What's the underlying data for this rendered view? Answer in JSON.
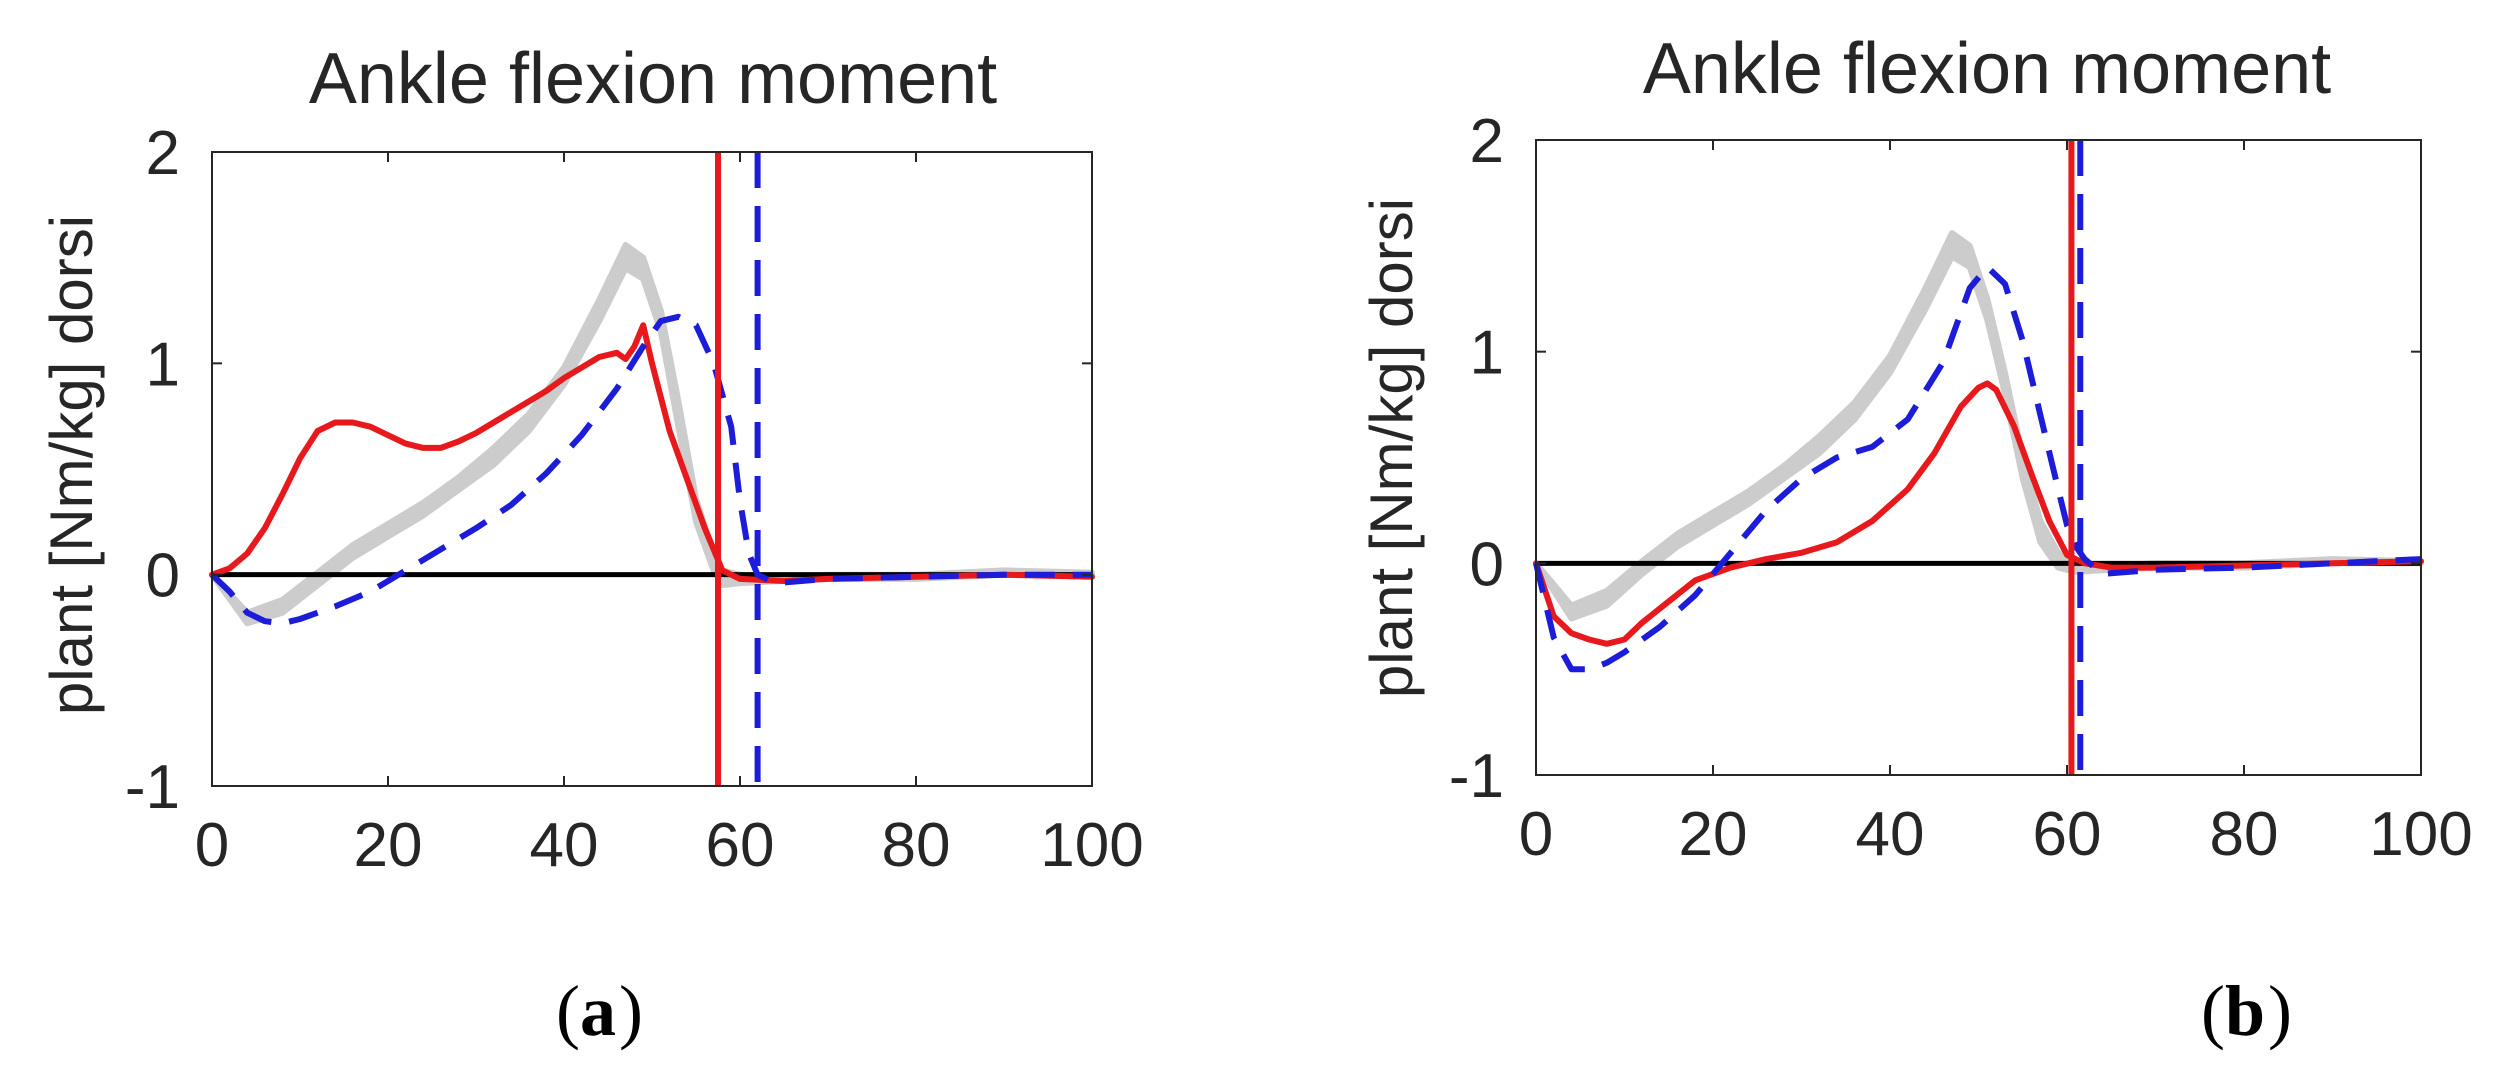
{
  "chart_data": [
    {
      "panel": "a",
      "type": "line",
      "title": "Ankle flexion moment",
      "ylabel": "plant   [Nm/kg]   dorsi",
      "xlabel": "",
      "xlim": [
        0,
        100
      ],
      "ylim": [
        -1,
        2
      ],
      "xticks": [
        "0",
        "20",
        "40",
        "60",
        "80",
        "100"
      ],
      "yticks": [
        "-1",
        "0",
        "1",
        "2"
      ],
      "grid": false,
      "legend": "none",
      "caption": "a",
      "band": {
        "color": "#cccccc",
        "x": [
          0,
          4,
          8,
          12,
          16,
          20,
          24,
          28,
          32,
          36,
          40,
          44,
          47,
          49,
          51,
          53,
          55,
          57,
          58,
          60,
          65,
          70,
          80,
          90,
          100
        ],
        "lower": [
          0,
          -0.23,
          -0.18,
          -0.05,
          0.08,
          0.18,
          0.28,
          0.4,
          0.52,
          0.68,
          0.9,
          1.2,
          1.45,
          1.4,
          1.15,
          0.7,
          0.25,
          0.02,
          -0.05,
          -0.04,
          -0.03,
          -0.02,
          -0.02,
          0.0,
          0.0
        ],
        "upper": [
          0,
          -0.18,
          -0.12,
          0.01,
          0.14,
          0.24,
          0.34,
          0.46,
          0.6,
          0.76,
          0.98,
          1.3,
          1.56,
          1.5,
          1.25,
          0.82,
          0.36,
          0.1,
          0.02,
          0.0,
          -0.01,
          0.0,
          0.0,
          0.02,
          0.01
        ]
      },
      "series": [
        {
          "color": "#e8191c",
          "style": "solid",
          "x": [
            0,
            2,
            4,
            6,
            8,
            10,
            12,
            14,
            16,
            18,
            20,
            22,
            24,
            26,
            28,
            30,
            32,
            34,
            36,
            38,
            40,
            42,
            44,
            46,
            47,
            48,
            49,
            50,
            52,
            54,
            56,
            58,
            60,
            65,
            70,
            80,
            90,
            100
          ],
          "y": [
            0,
            0.03,
            0.1,
            0.22,
            0.38,
            0.55,
            0.68,
            0.72,
            0.72,
            0.7,
            0.66,
            0.62,
            0.6,
            0.6,
            0.63,
            0.67,
            0.72,
            0.77,
            0.82,
            0.87,
            0.93,
            0.98,
            1.03,
            1.05,
            1.02,
            1.08,
            1.18,
            1.0,
            0.68,
            0.45,
            0.22,
            0.02,
            -0.02,
            -0.03,
            -0.02,
            -0.01,
            0.0,
            -0.01
          ]
        },
        {
          "color": "#1c1cd9",
          "style": "dashed",
          "x": [
            0,
            2,
            4,
            6,
            8,
            10,
            14,
            18,
            22,
            26,
            30,
            34,
            38,
            42,
            46,
            49,
            51,
            53,
            55,
            57,
            59,
            60,
            61,
            62,
            64,
            70,
            80,
            90,
            100
          ],
          "y": [
            0,
            -0.08,
            -0.18,
            -0.22,
            -0.23,
            -0.21,
            -0.15,
            -0.08,
            0.02,
            0.12,
            0.22,
            0.33,
            0.48,
            0.66,
            0.88,
            1.08,
            1.2,
            1.22,
            1.18,
            1.0,
            0.7,
            0.35,
            0.1,
            0.0,
            -0.04,
            -0.02,
            -0.01,
            0.0,
            0.0
          ]
        }
      ],
      "vlines": [
        {
          "x": 57.5,
          "color": "#e8191c",
          "style": "solid"
        },
        {
          "x": 62,
          "color": "#1c1cd9",
          "style": "dashed"
        }
      ],
      "hline": {
        "y": 0,
        "color": "#000000"
      }
    },
    {
      "panel": "b",
      "type": "line",
      "title": "Ankle flexion moment",
      "ylabel": "plant   [Nm/kg]   dorsi",
      "xlabel": "",
      "xlim": [
        0,
        100
      ],
      "ylim": [
        -1,
        2
      ],
      "xticks": [
        "0",
        "20",
        "40",
        "60",
        "80",
        "100"
      ],
      "yticks": [
        "-1",
        "0",
        "1",
        "2"
      ],
      "grid": false,
      "legend": "none",
      "caption": "b",
      "band": {
        "color": "#cccccc",
        "x": [
          0,
          4,
          8,
          12,
          16,
          20,
          24,
          28,
          32,
          36,
          40,
          44,
          47,
          49,
          51,
          53,
          55,
          57,
          59,
          61,
          65,
          70,
          80,
          90,
          100
        ],
        "lower": [
          0,
          -0.26,
          -0.2,
          -0.05,
          0.08,
          0.18,
          0.28,
          0.4,
          0.52,
          0.68,
          0.9,
          1.2,
          1.45,
          1.4,
          1.15,
          0.8,
          0.4,
          0.1,
          -0.02,
          -0.04,
          -0.03,
          -0.02,
          -0.02,
          0.0,
          0.0
        ],
        "upper": [
          0,
          -0.2,
          -0.13,
          0.01,
          0.14,
          0.24,
          0.34,
          0.46,
          0.6,
          0.76,
          0.98,
          1.3,
          1.56,
          1.5,
          1.25,
          0.9,
          0.5,
          0.2,
          0.05,
          0.0,
          -0.01,
          0.0,
          0.0,
          0.02,
          0.01
        ]
      },
      "series": [
        {
          "color": "#e8191c",
          "style": "solid",
          "x": [
            0,
            2,
            4,
            6,
            8,
            10,
            12,
            15,
            18,
            22,
            26,
            30,
            34,
            38,
            42,
            45,
            48,
            50,
            51,
            52,
            54,
            56,
            58,
            60,
            62,
            65,
            70,
            80,
            90,
            100
          ],
          "y": [
            0,
            -0.25,
            -0.33,
            -0.36,
            -0.38,
            -0.36,
            -0.28,
            -0.18,
            -0.08,
            -0.02,
            0.02,
            0.05,
            0.1,
            0.2,
            0.35,
            0.52,
            0.74,
            0.83,
            0.85,
            0.82,
            0.65,
            0.42,
            0.2,
            0.04,
            0.0,
            -0.02,
            -0.02,
            -0.01,
            0.0,
            0.01
          ]
        },
        {
          "color": "#1c1cd9",
          "style": "dashed",
          "x": [
            0,
            2,
            4,
            6,
            8,
            10,
            14,
            18,
            22,
            26,
            30,
            34,
            38,
            42,
            46,
            49,
            51,
            53,
            55,
            57,
            59,
            60,
            61,
            62,
            64,
            70,
            80,
            90,
            100
          ],
          "y": [
            0,
            -0.35,
            -0.5,
            -0.5,
            -0.47,
            -0.42,
            -0.3,
            -0.15,
            0.05,
            0.25,
            0.4,
            0.5,
            0.55,
            0.68,
            0.95,
            1.3,
            1.4,
            1.32,
            1.05,
            0.7,
            0.35,
            0.18,
            0.08,
            0.02,
            -0.05,
            -0.03,
            -0.02,
            0.0,
            0.02
          ]
        }
      ],
      "vlines": [
        {
          "x": 60.5,
          "color": "#e8191c",
          "style": "solid"
        },
        {
          "x": 61.5,
          "color": "#1c1cd9",
          "style": "dashed"
        }
      ],
      "hline": {
        "y": 0,
        "color": "#000000"
      }
    }
  ]
}
